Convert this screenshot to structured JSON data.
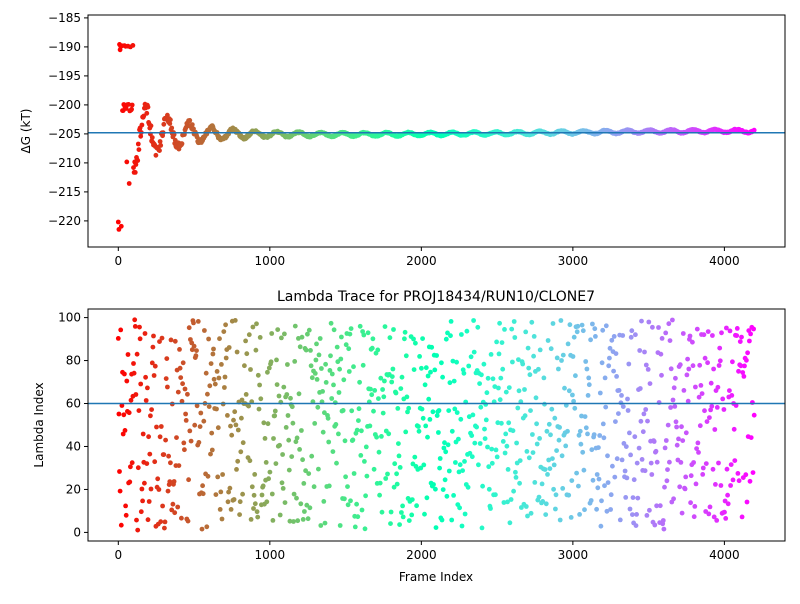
{
  "chart_data": [
    {
      "type": "scatter",
      "title": "",
      "xlabel": "",
      "ylabel": "ΔG (kT)",
      "xlim": [
        -200,
        4400
      ],
      "ylim": [
        -224.5,
        -184.5
      ],
      "xticks": [
        "0",
        "1000",
        "2000",
        "3000",
        "4000"
      ],
      "yticks": [
        "−185",
        "−190",
        "−195",
        "−200",
        "−205",
        "−210",
        "−215",
        "−220"
      ],
      "xtick_values": [
        0,
        1000,
        2000,
        3000,
        4000
      ],
      "ytick_values": [
        -185,
        -190,
        -195,
        -200,
        -205,
        -210,
        -215,
        -220
      ],
      "hline": -204.8,
      "hline_color": "#1f77b4",
      "colormap": "rainbow (red at frame 0 to violet at frame 4200)",
      "n_points": 4200,
      "series": [
        {
          "name": "",
          "x_range": [
            0,
            4200
          ],
          "early_values": [
            -190,
            -190,
            -200,
            -210,
            -220,
            -200,
            -210,
            -214,
            -221,
            -198,
            -201
          ],
          "converges_to": -204.8,
          "settle_frame": 1500
        }
      ]
    },
    {
      "type": "scatter",
      "title": "Lambda Trace for PROJ18434/RUN10/CLONE7",
      "xlabel": "Frame Index",
      "ylabel": "Lambda Index",
      "xlim": [
        -200,
        4400
      ],
      "ylim": [
        -4,
        104
      ],
      "xticks": [
        "0",
        "1000",
        "2000",
        "3000",
        "4000"
      ],
      "yticks": [
        "0",
        "20",
        "40",
        "60",
        "80",
        "100"
      ],
      "xtick_values": [
        0,
        1000,
        2000,
        3000,
        4000
      ],
      "ytick_values": [
        0,
        20,
        40,
        60,
        80,
        100
      ],
      "hline": 60,
      "hline_color": "#1f77b4",
      "colormap": "rainbow (red at frame 0 to violet at frame 4200)",
      "n_points": 4200,
      "series": [
        {
          "name": "",
          "x_range": [
            0,
            4200
          ],
          "y_range": [
            1,
            99
          ]
        }
      ]
    }
  ]
}
